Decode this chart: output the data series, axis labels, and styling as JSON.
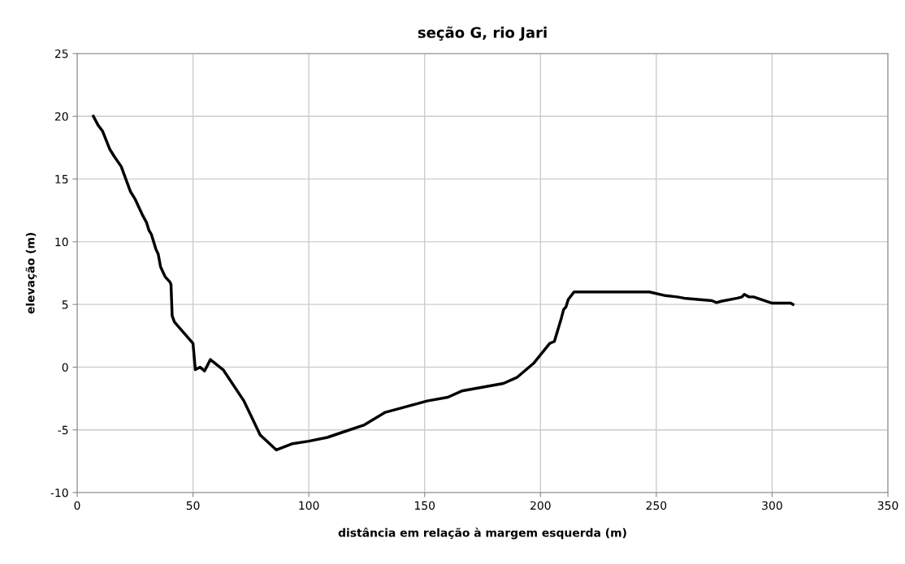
{
  "chart_data": {
    "type": "line",
    "title": "seção G, rio Jari",
    "xlabel": "distância em relação à margem esquerda (m)",
    "ylabel": "elevação (m)",
    "xlim": [
      0,
      350
    ],
    "xticks": [
      0,
      50,
      100,
      150,
      200,
      250,
      300,
      350
    ],
    "ylim": [
      -10,
      25
    ],
    "yticks": [
      -10,
      -5,
      0,
      5,
      10,
      15,
      20,
      25
    ],
    "grid": true,
    "series": [
      {
        "color": "#000000",
        "x": [
          7,
          9,
          11,
          14,
          16,
          19,
          21,
          23,
          25,
          28,
          30,
          31,
          32,
          34,
          35,
          36,
          37,
          38,
          40,
          40.5,
          41,
          42,
          50,
          51,
          53,
          55,
          57.5,
          63,
          72,
          79,
          86,
          93,
          100,
          108,
          116,
          124,
          133,
          143,
          151,
          160,
          166,
          184,
          190,
          197,
          204,
          206,
          209,
          210,
          211,
          212,
          214.5,
          225,
          247,
          254,
          259,
          262,
          268,
          274,
          276,
          278,
          285,
          287,
          288,
          290,
          292,
          300,
          308,
          309
        ],
        "values": [
          20,
          19.3,
          18.8,
          17.4,
          16.8,
          16,
          15,
          14,
          13.4,
          12.2,
          11.5,
          10.9,
          10.6,
          9.4,
          9,
          8,
          7.6,
          7.2,
          6.8,
          6.6,
          4.1,
          3.6,
          1.9,
          -0.2,
          0,
          -0.3,
          0.6,
          -0.2,
          -2.7,
          -5.4,
          -6.6,
          -6.1,
          -5.9,
          -5.6,
          -5.1,
          -4.6,
          -3.6,
          -3.1,
          -2.7,
          -2.4,
          -1.9,
          -1.3,
          -0.8,
          0.3,
          1.9,
          2.05,
          3.9,
          4.6,
          4.8,
          5.4,
          6,
          6,
          6,
          5.7,
          5.6,
          5.5,
          5.4,
          5.3,
          5.15,
          5.25,
          5.5,
          5.6,
          5.8,
          5.6,
          5.6,
          5.1,
          5.1,
          5
        ]
      }
    ]
  }
}
